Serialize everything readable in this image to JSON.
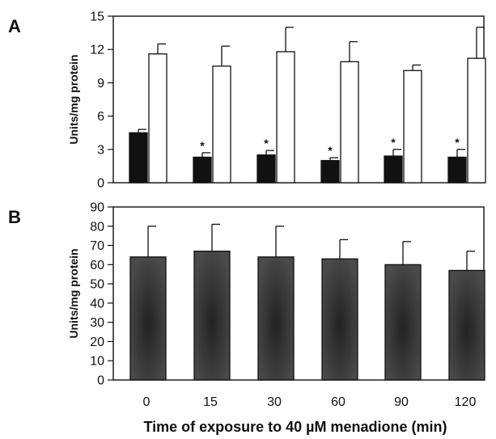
{
  "chart_data": [
    {
      "panel_label": "A",
      "type": "bar",
      "categories": [
        "0",
        "15",
        "30",
        "60",
        "90",
        "120"
      ],
      "ylabel": "Units/mg protein",
      "ylim": [
        0,
        15
      ],
      "yticks": [
        "0",
        "3",
        "6",
        "9",
        "12",
        "15"
      ],
      "grid": false,
      "legend": "none",
      "series": [
        {
          "fill": "#111111",
          "values": [
            4.5,
            2.3,
            2.5,
            2.0,
            2.4,
            2.3
          ],
          "error": [
            0.3,
            0.4,
            0.4,
            0.25,
            0.6,
            0.7
          ],
          "annotations": [
            "",
            "*",
            "*",
            "*",
            "*",
            "*"
          ]
        },
        {
          "fill": "#ffffff",
          "values": [
            11.6,
            10.5,
            11.8,
            10.9,
            10.1,
            11.2
          ],
          "error": [
            0.9,
            1.8,
            2.2,
            1.8,
            0.5,
            2.8
          ],
          "annotations": [
            "",
            "",
            "",
            "",
            "",
            ""
          ]
        }
      ]
    },
    {
      "panel_label": "B",
      "type": "bar",
      "categories": [
        "0",
        "15",
        "30",
        "60",
        "90",
        "120"
      ],
      "ylabel": "Units/mg protein",
      "xlabel": "Time of exposure to 40 µM menadione (min)",
      "ylim": [
        0,
        90
      ],
      "yticks": [
        "0",
        "10",
        "20",
        "30",
        "40",
        "50",
        "60",
        "70",
        "80",
        "90"
      ],
      "grid": false,
      "legend": "none",
      "series": [
        {
          "fill": "#3a3a3a",
          "values": [
            64,
            67,
            64,
            63,
            60,
            57
          ],
          "error": [
            16,
            14,
            16,
            10,
            12,
            10
          ],
          "annotations": [
            "",
            "",
            "",
            "",
            "",
            ""
          ]
        }
      ]
    }
  ]
}
